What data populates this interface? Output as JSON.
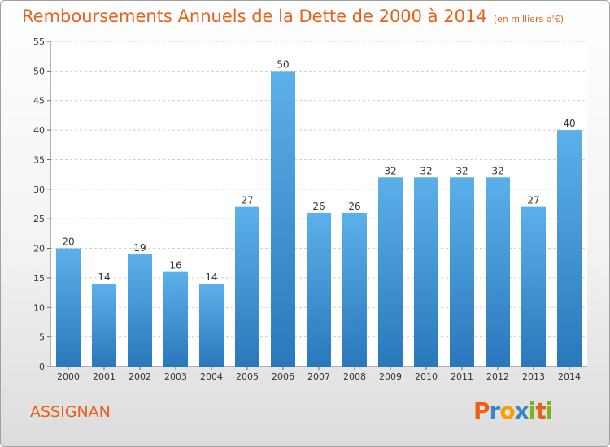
{
  "chart_data": {
    "type": "bar",
    "title": "Remboursements Annuels de la Dette de 2000 à 2014",
    "subtitle": "(en milliers d'€)",
    "categories": [
      "2000",
      "2001",
      "2002",
      "2003",
      "2004",
      "2005",
      "2006",
      "2007",
      "2008",
      "2009",
      "2010",
      "2011",
      "2012",
      "2013",
      "2014"
    ],
    "values": [
      20,
      14,
      19,
      16,
      14,
      27,
      50,
      26,
      26,
      32,
      32,
      32,
      32,
      27,
      40
    ],
    "ylim": [
      0,
      55
    ],
    "yticks": [
      0,
      5,
      10,
      15,
      20,
      25,
      30,
      35,
      40,
      45,
      50,
      55
    ],
    "grid": true,
    "bar_color": "#4a9de0"
  },
  "footer": {
    "commune": "ASSIGNAN",
    "logo_letters": [
      "P",
      "r",
      "o",
      "x",
      "i",
      "t",
      "i"
    ],
    "logo_colors": [
      "#e8601c",
      "#3a87c8",
      "#f2a200",
      "#3a87c8",
      "#7cb518",
      "#e8601c",
      "#7cb518"
    ]
  }
}
